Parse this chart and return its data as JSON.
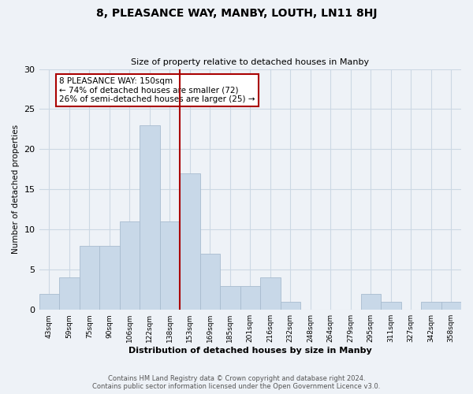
{
  "title": "8, PLEASANCE WAY, MANBY, LOUTH, LN11 8HJ",
  "subtitle": "Size of property relative to detached houses in Manby",
  "xlabel": "Distribution of detached houses by size in Manby",
  "ylabel": "Number of detached properties",
  "bar_color": "#c8d8e8",
  "bar_edge_color": "#a8bccf",
  "grid_color": "#ccd8e4",
  "background_color": "#eef2f7",
  "bin_labels": [
    "43sqm",
    "59sqm",
    "75sqm",
    "90sqm",
    "106sqm",
    "122sqm",
    "138sqm",
    "153sqm",
    "169sqm",
    "185sqm",
    "201sqm",
    "216sqm",
    "232sqm",
    "248sqm",
    "264sqm",
    "279sqm",
    "295sqm",
    "311sqm",
    "327sqm",
    "342sqm",
    "358sqm"
  ],
  "values": [
    2,
    4,
    8,
    8,
    11,
    23,
    11,
    17,
    7,
    3,
    3,
    4,
    1,
    0,
    0,
    0,
    2,
    1,
    0,
    1,
    1
  ],
  "marker_bin_index": 7,
  "marker_line_color": "#aa0000",
  "ylim": [
    0,
    30
  ],
  "yticks": [
    0,
    5,
    10,
    15,
    20,
    25,
    30
  ],
  "annotation_text": "8 PLEASANCE WAY: 150sqm\n← 74% of detached houses are smaller (72)\n26% of semi-detached houses are larger (25) →",
  "annotation_box_edge": "#aa0000",
  "footer_line1": "Contains HM Land Registry data © Crown copyright and database right 2024.",
  "footer_line2": "Contains public sector information licensed under the Open Government Licence v3.0."
}
